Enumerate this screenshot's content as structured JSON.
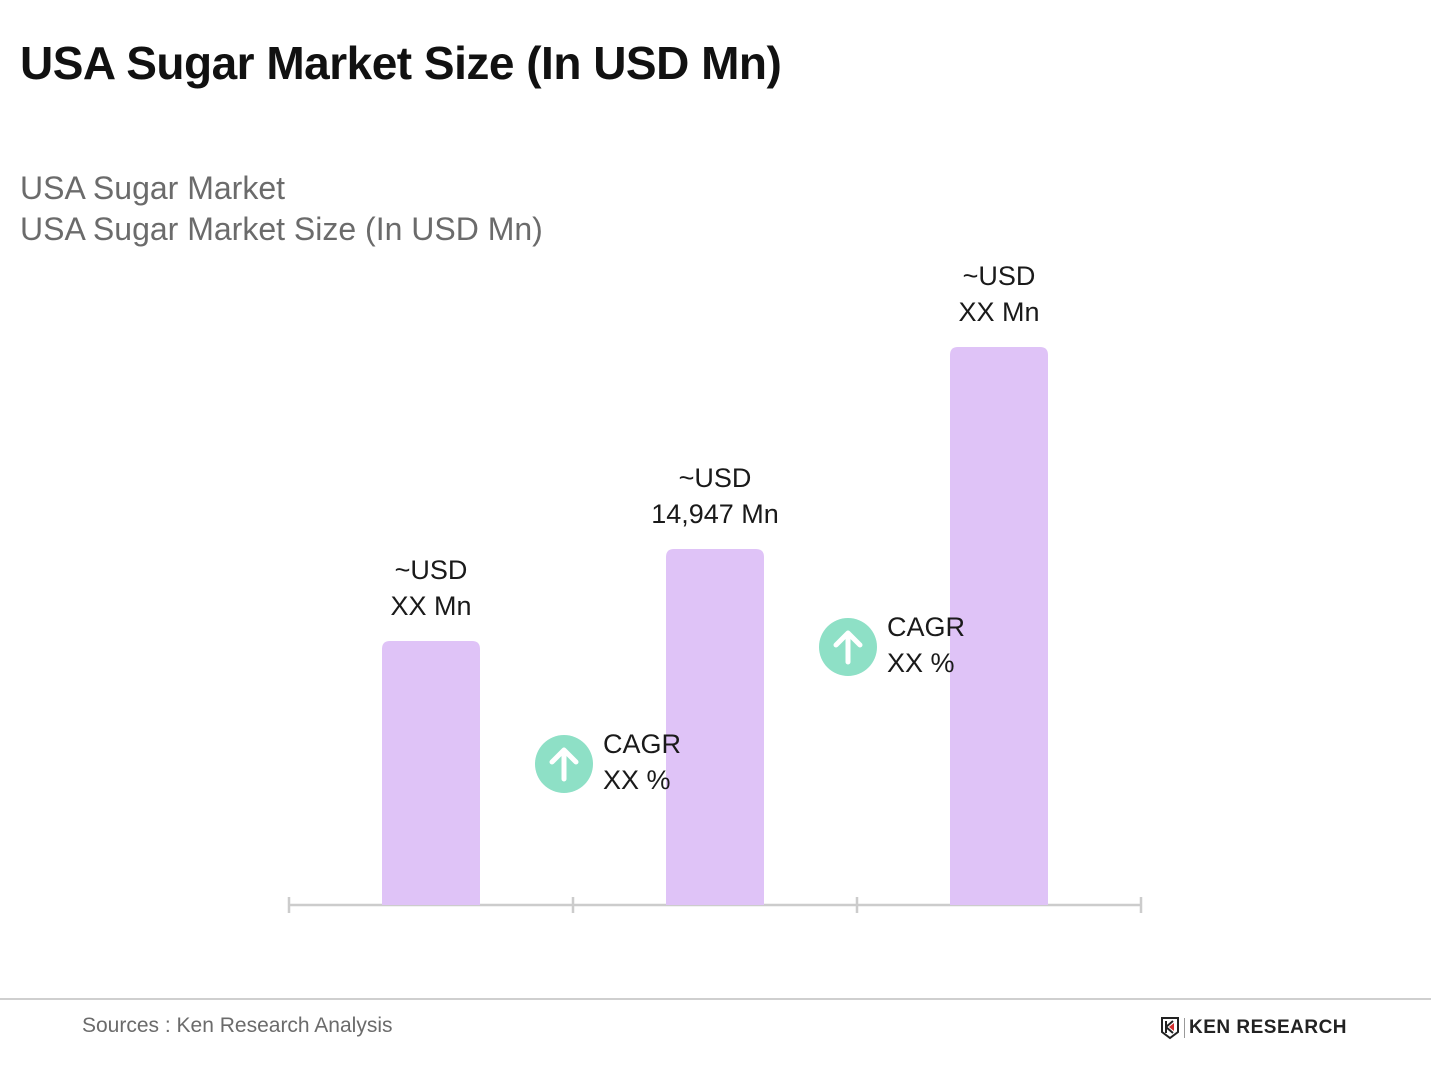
{
  "chart_data": {
    "type": "bar",
    "title": "USA Sugar Market Size (In USD Mn)",
    "subtitle": [
      "USA Sugar Market",
      "USA Sugar Market Size (In USD Mn)"
    ],
    "xlabel": "",
    "ylabel": "",
    "categories": [
      "",
      "",
      ""
    ],
    "values": [
      11085,
      14947,
      23430
    ],
    "data_labels": [
      [
        "~USD",
        "XX Mn"
      ],
      [
        "~USD",
        "14,947 Mn"
      ],
      [
        "~USD",
        "XX Mn"
      ]
    ],
    "annotations": [
      {
        "between": [
          0,
          1
        ],
        "icon": "arrow-up-circle-icon",
        "lines": [
          "CAGR",
          "XX %"
        ]
      },
      {
        "between": [
          1,
          2
        ],
        "icon": "arrow-up-circle-icon",
        "lines": [
          "CAGR",
          "XX %"
        ]
      }
    ],
    "ylim": [
      0,
      23430
    ],
    "grid": false,
    "legend": "none",
    "colors": {
      "bar": "#dfc3f7",
      "cagr_icon": "#8ee0c6",
      "axis": "#cccccc"
    }
  },
  "footer": {
    "source": "Sources : Ken Research Analysis",
    "logo_text": "KEN RESEARCH"
  }
}
